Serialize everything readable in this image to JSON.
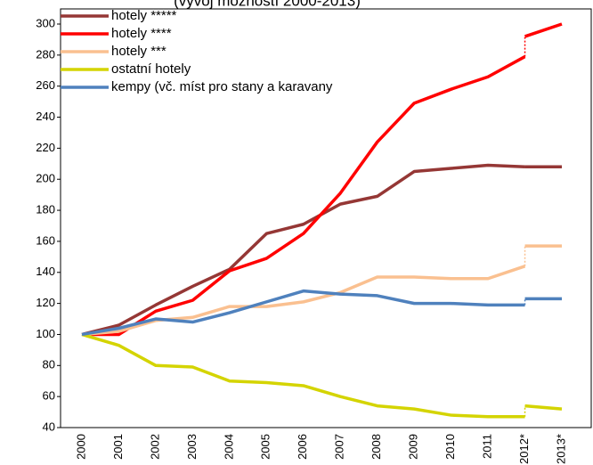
{
  "chart_data": {
    "type": "line",
    "title": "(vývoj možností 2000-2013)",
    "categories": [
      "2000",
      "2001",
      "2002",
      "2003",
      "2004",
      "2005",
      "2006",
      "2007",
      "2008",
      "2009",
      "2010",
      "2011",
      "2012*",
      "2013*"
    ],
    "series": [
      {
        "name": "hotely *****",
        "color": "#953735",
        "values": [
          100,
          106,
          119,
          131,
          142,
          165,
          171,
          184,
          189,
          205,
          207,
          209,
          208,
          null
        ],
        "values_revised": [
          null,
          null,
          null,
          null,
          null,
          null,
          null,
          null,
          null,
          null,
          null,
          null,
          208,
          208
        ]
      },
      {
        "name": "hotely ****",
        "color": "#ff0000",
        "values": [
          100,
          100,
          115,
          122,
          141,
          149,
          165,
          191,
          224,
          249,
          258,
          266,
          279,
          null
        ],
        "values_revised": [
          null,
          null,
          null,
          null,
          null,
          null,
          null,
          null,
          null,
          null,
          null,
          null,
          292,
          300
        ]
      },
      {
        "name": "hotely ***",
        "color": "#fac090",
        "values": [
          100,
          102,
          109,
          111,
          118,
          118,
          121,
          127,
          137,
          137,
          136,
          136,
          144,
          null
        ],
        "values_revised": [
          null,
          null,
          null,
          null,
          null,
          null,
          null,
          null,
          null,
          null,
          null,
          null,
          157,
          157
        ]
      },
      {
        "name": "ostatní hotely",
        "color": "#d4d400",
        "values": [
          100,
          93,
          80,
          79,
          70,
          69,
          67,
          60,
          54,
          52,
          48,
          47,
          47,
          null
        ],
        "values_revised": [
          null,
          null,
          null,
          null,
          null,
          null,
          null,
          null,
          null,
          null,
          null,
          null,
          54,
          52
        ]
      },
      {
        "name": "kempy (vč. míst pro stany a karavany",
        "color": "#4f81bd",
        "values": [
          100,
          104,
          110,
          108,
          114,
          121,
          128,
          126,
          125,
          120,
          120,
          119,
          119,
          null
        ],
        "values_revised": [
          null,
          null,
          null,
          null,
          null,
          null,
          null,
          null,
          null,
          null,
          null,
          null,
          123,
          123
        ]
      }
    ],
    "ylim": [
      40,
      300
    ],
    "yticks": [
      40,
      60,
      80,
      100,
      120,
      140,
      160,
      180,
      200,
      220,
      240,
      260,
      280,
      300
    ],
    "grid": false
  }
}
